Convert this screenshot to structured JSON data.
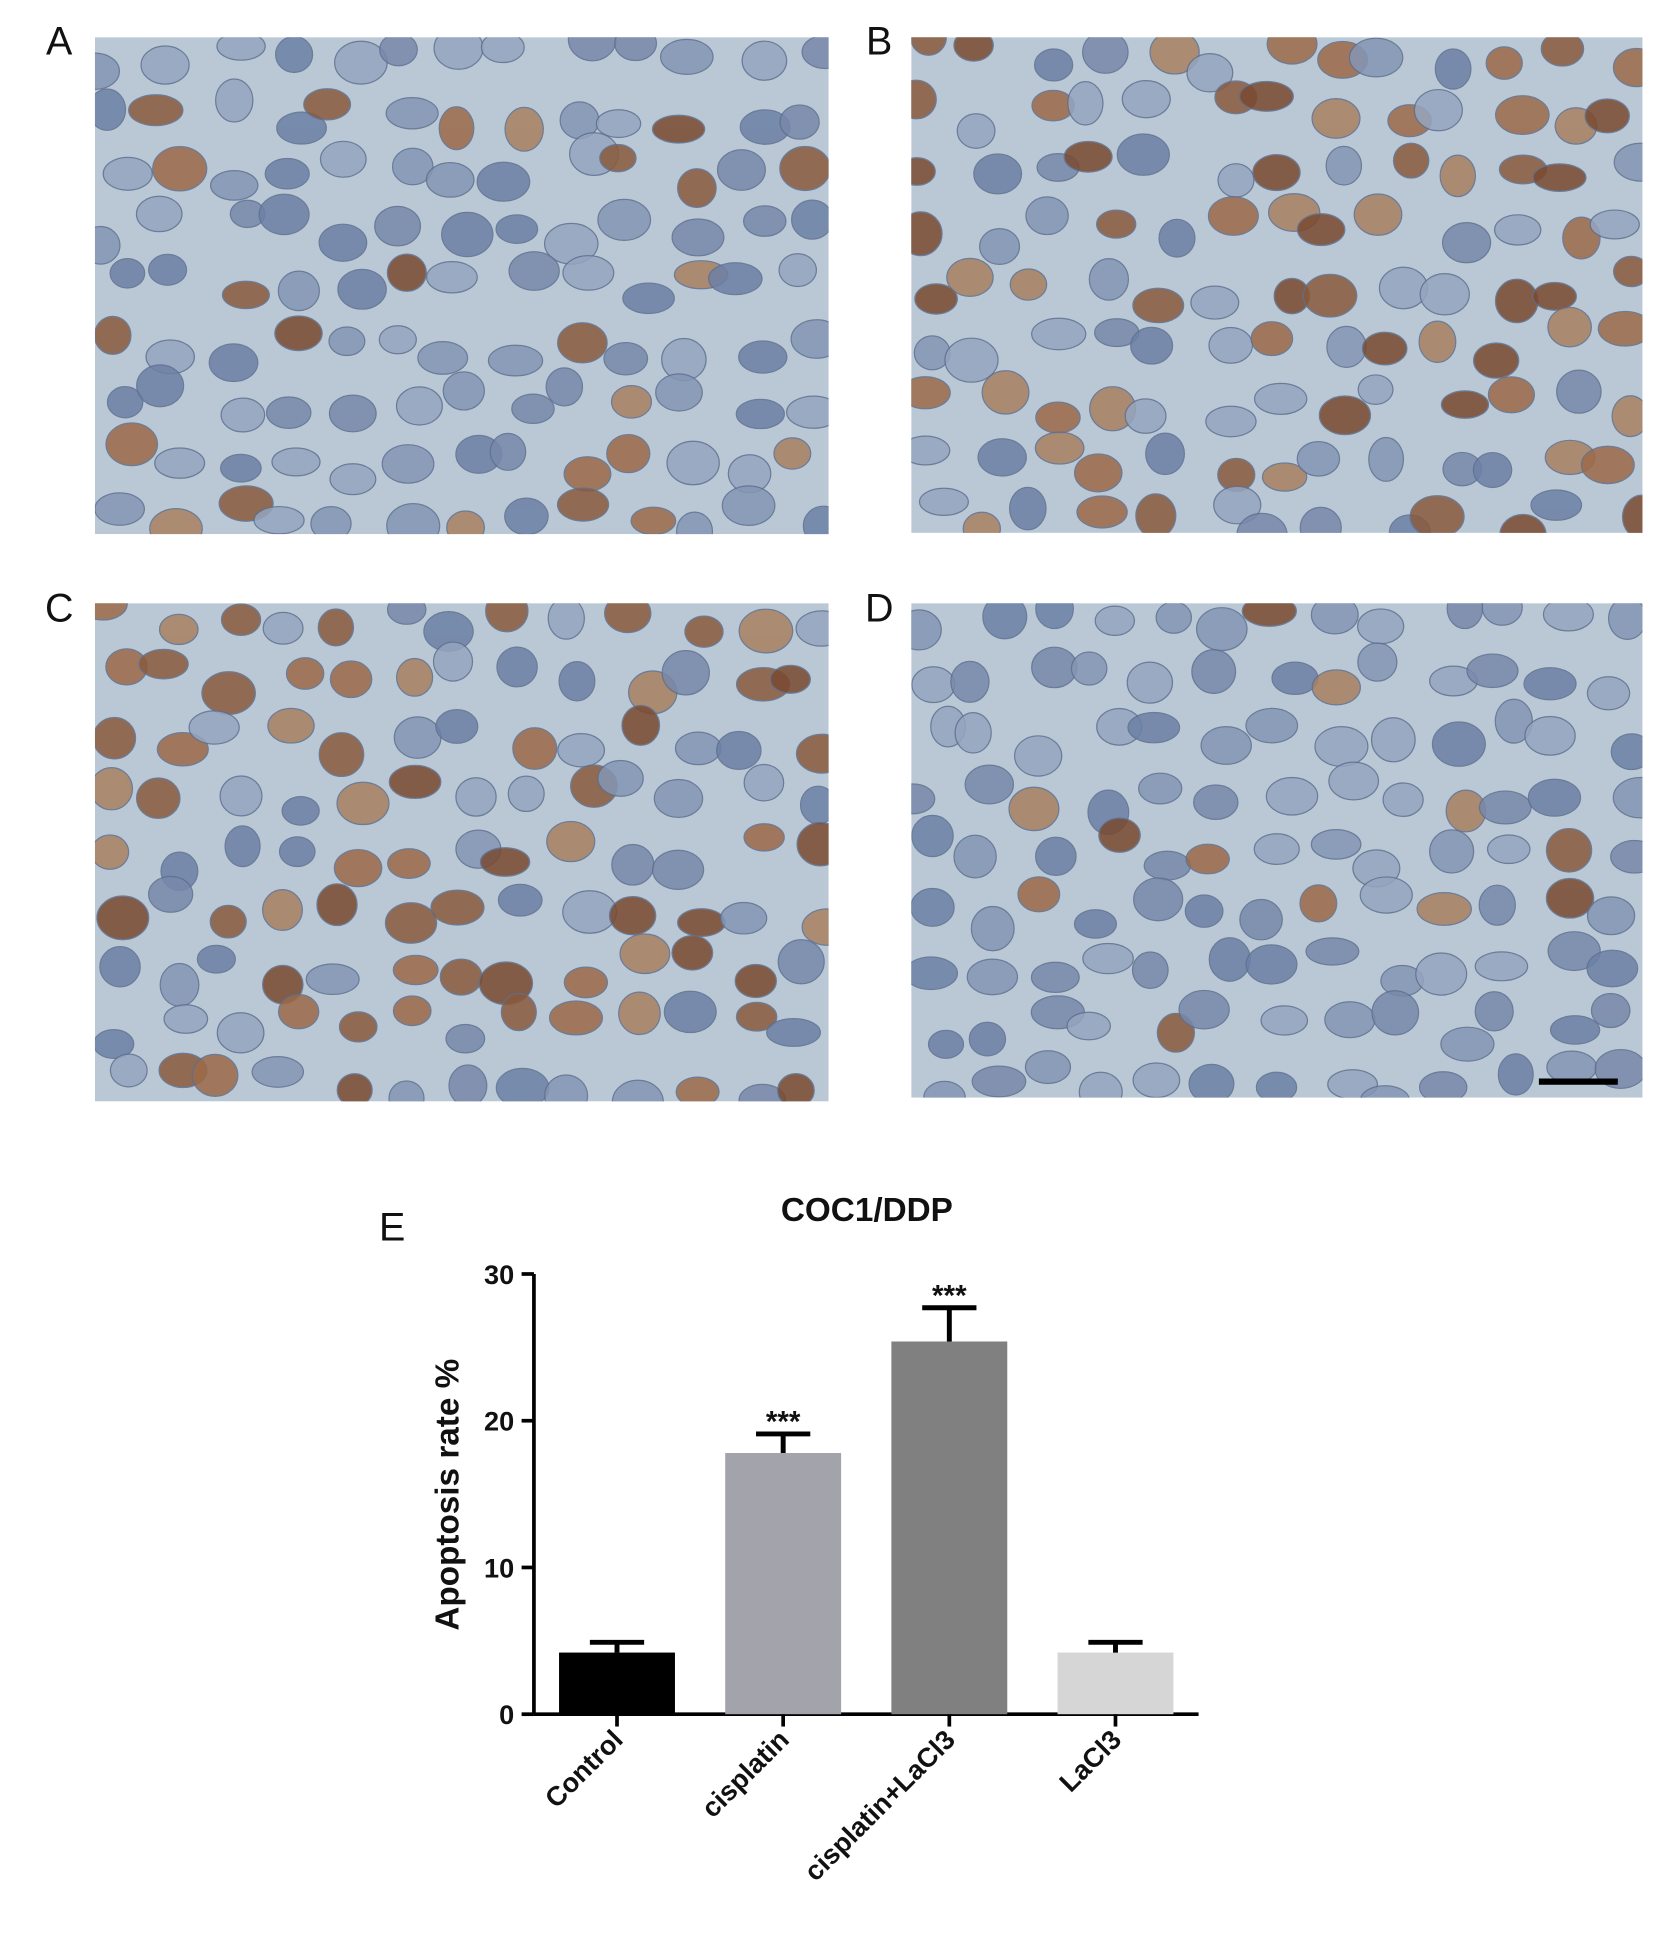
{
  "panels": [
    "A",
    "B",
    "C",
    "D"
  ],
  "chart_data": {
    "type": "bar",
    "panel_label": "E",
    "title": "COC1/DDP",
    "y_label": "Apoptosis rate %",
    "categories": [
      "Control",
      "cisplatin",
      "cisplatin+LaCl3",
      "LaCl3"
    ],
    "values": [
      4.2,
      17.8,
      25.4,
      4.2
    ],
    "errors": [
      0.7,
      1.3,
      2.3,
      0.7
    ],
    "significance": [
      null,
      "***",
      "***",
      null
    ],
    "colors": [
      "#000000",
      "#a3a3ab",
      "#808080",
      "#d6d6d6"
    ],
    "ylim": [
      0,
      30
    ],
    "yticks": [
      0,
      10,
      20,
      30
    ]
  }
}
